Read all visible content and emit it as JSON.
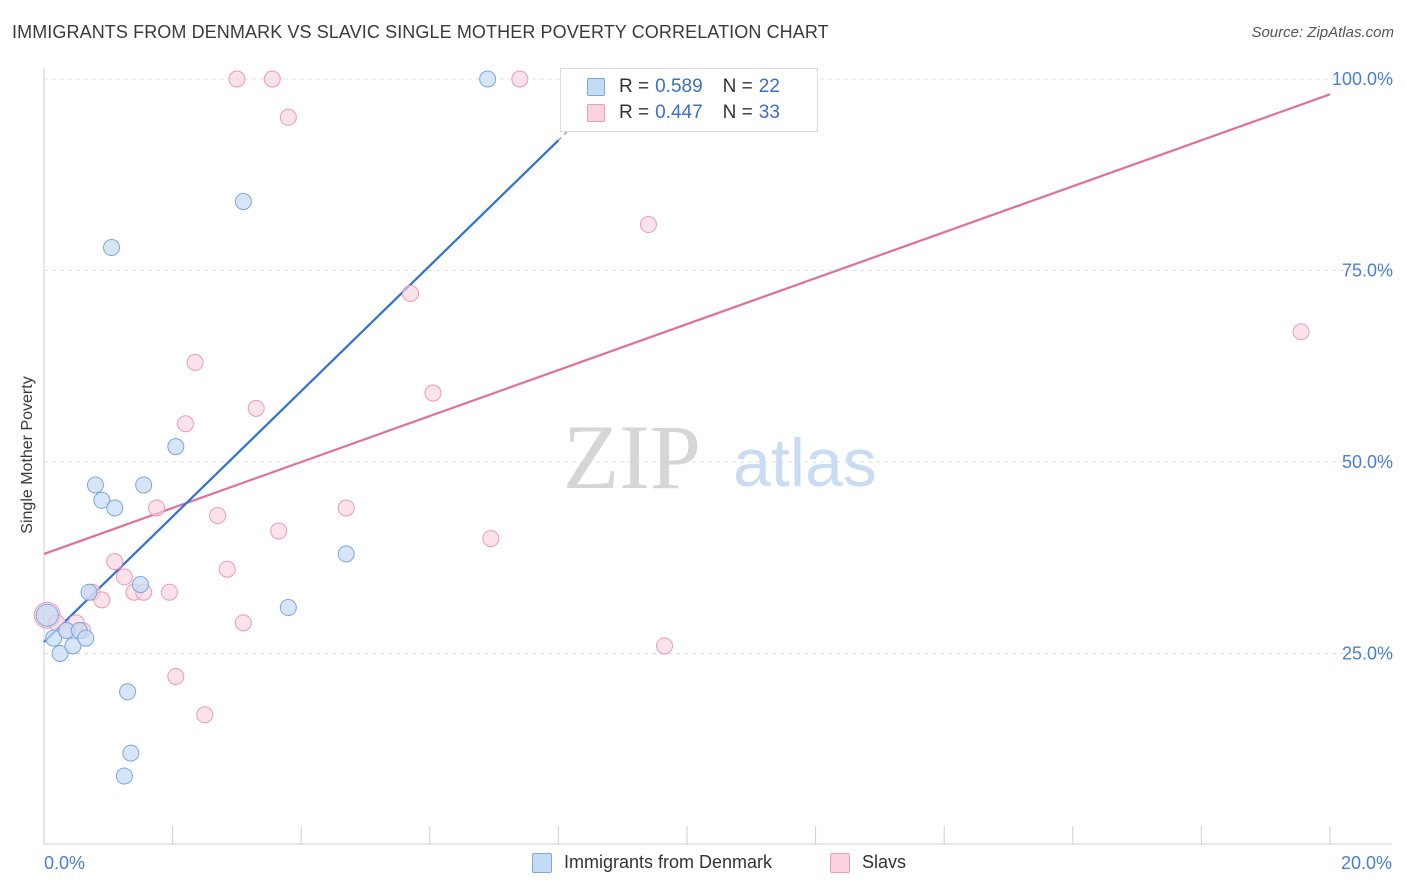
{
  "title": "IMMIGRANTS FROM DENMARK VS SLAVIC SINGLE MOTHER POVERTY CORRELATION CHART",
  "source": "Source: ZipAtlas.com",
  "watermark": {
    "zip": "ZIP",
    "atlas": "atlas"
  },
  "colors": {
    "blue_fill": "#c4dbf5",
    "blue_stroke": "#7aa7df",
    "blue_line": "#2f72d1",
    "pink_fill": "#fbd3df",
    "pink_stroke": "#ee9ab3",
    "pink_line": "#e0709a",
    "tick_label": "#4a7fd0",
    "grid": "#e2e2e2"
  },
  "legend_top": {
    "rows": [
      {
        "r_label": "R =",
        "r_value": "0.589",
        "n_label": "N =",
        "n_value": "22"
      },
      {
        "r_label": "R =",
        "r_value": "0.447",
        "n_label": "N =",
        "n_value": "33"
      }
    ]
  },
  "legend_bottom": [
    {
      "label": "Immigrants from Denmark"
    },
    {
      "label": "Slavs"
    }
  ],
  "chart_data": {
    "type": "scatter",
    "title": "IMMIGRANTS FROM DENMARK VS SLAVIC SINGLE MOTHER POVERTY CORRELATION CHART",
    "xlabel": "",
    "ylabel": "Single Mother Poverty",
    "xlim": [
      0,
      20
    ],
    "ylim": [
      0,
      105
    ],
    "x_tick_labels": [
      "0.0%",
      "20.0%"
    ],
    "y_ticks": [
      25,
      50,
      75,
      100
    ],
    "y_tick_labels": [
      "25.0%",
      "50.0%",
      "75.0%",
      "100.0%"
    ],
    "grid": "horizontal dashed",
    "legend_position": "top-center",
    "series": [
      {
        "name": "Immigrants from Denmark",
        "color": "#c4dbf5",
        "points": [
          [
            0.05,
            30
          ],
          [
            0.15,
            27
          ],
          [
            0.25,
            25
          ],
          [
            0.35,
            28
          ],
          [
            0.45,
            26
          ],
          [
            0.55,
            28
          ],
          [
            0.65,
            27
          ],
          [
            0.7,
            33
          ],
          [
            0.8,
            47
          ],
          [
            0.9,
            45
          ],
          [
            1.1,
            44
          ],
          [
            1.05,
            78
          ],
          [
            1.3,
            20
          ],
          [
            1.35,
            12
          ],
          [
            1.25,
            9
          ],
          [
            1.5,
            34
          ],
          [
            1.55,
            47
          ],
          [
            2.05,
            52
          ],
          [
            3.1,
            84
          ],
          [
            3.8,
            31
          ],
          [
            4.7,
            38
          ],
          [
            6.9,
            100
          ]
        ],
        "trend": {
          "x": [
            0,
            8
          ],
          "y": [
            26.5,
            92
          ]
        }
      },
      {
        "name": "Slavs",
        "color": "#fbd3df",
        "points": [
          [
            0.05,
            30
          ],
          [
            0.2,
            29
          ],
          [
            0.35,
            28
          ],
          [
            0.5,
            29
          ],
          [
            0.6,
            28
          ],
          [
            0.75,
            33
          ],
          [
            0.9,
            32
          ],
          [
            1.1,
            37
          ],
          [
            1.25,
            35
          ],
          [
            1.4,
            33
          ],
          [
            1.55,
            33
          ],
          [
            1.75,
            44
          ],
          [
            1.95,
            33
          ],
          [
            2.05,
            22
          ],
          [
            2.2,
            55
          ],
          [
            2.35,
            63
          ],
          [
            2.5,
            17
          ],
          [
            2.7,
            43
          ],
          [
            2.85,
            36
          ],
          [
            3.0,
            100
          ],
          [
            3.1,
            29
          ],
          [
            3.3,
            57
          ],
          [
            3.55,
            100
          ],
          [
            3.65,
            41
          ],
          [
            3.8,
            95
          ],
          [
            4.7,
            44
          ],
          [
            5.7,
            72
          ],
          [
            6.05,
            59
          ],
          [
            6.95,
            40
          ],
          [
            7.4,
            100
          ],
          [
            9.4,
            81
          ],
          [
            9.65,
            26
          ],
          [
            19.55,
            67
          ]
        ],
        "trend": {
          "x": [
            0,
            20
          ],
          "y": [
            38,
            98
          ]
        }
      }
    ]
  }
}
